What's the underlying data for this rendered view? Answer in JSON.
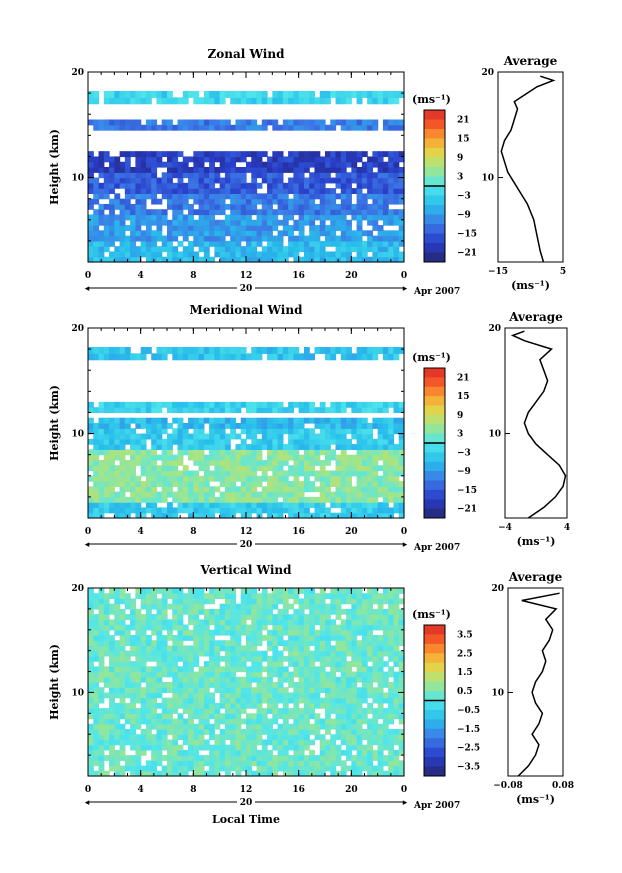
{
  "chart_data": [
    {
      "type": "heatmap",
      "title": "Zonal Wind",
      "ylabel": "Height (km)",
      "xlabel": "",
      "x_ticks": [
        "0",
        "4",
        "8",
        "12",
        "16",
        "20",
        "0"
      ],
      "y_ticks": [
        "10",
        "20"
      ],
      "date_label": "20",
      "month_label": "Apr 2007",
      "colorbar_unit": "(ms⁻¹)",
      "colorbar_ticks": [
        "21",
        "15",
        "9",
        "3",
        "−3",
        "−9",
        "−15",
        "−21"
      ],
      "colorbar_range": [
        -24,
        24
      ],
      "layers": [
        {
          "h_min": 2.0,
          "h_max": 4.0,
          "value": -6
        },
        {
          "h_min": 4.0,
          "h_max": 6.5,
          "value": -9
        },
        {
          "h_min": 6.5,
          "h_max": 8.5,
          "value": -12
        },
        {
          "h_min": 8.5,
          "h_max": 10.5,
          "value": -15
        },
        {
          "h_min": 10.5,
          "h_max": 12.5,
          "value": -18
        },
        {
          "h_min": 14.5,
          "h_max": 15.5,
          "value": -12
        },
        {
          "h_min": 17.0,
          "h_max": 18.2,
          "value": -3
        }
      ],
      "profile": {
        "title": "Average",
        "xlabel": "(ms⁻¹)",
        "x_ticks": [
          "−15",
          "5"
        ],
        "xlim": [
          -15,
          5
        ],
        "y_ticks": [
          "10",
          "20"
        ],
        "ylim": [
          2,
          20
        ],
        "values": [
          [
            -1,
            2
          ],
          [
            -2,
            3
          ],
          [
            -3,
            4.5
          ],
          [
            -4,
            6
          ],
          [
            -6,
            7.5
          ],
          [
            -8,
            8.5
          ],
          [
            -10,
            9.5
          ],
          [
            -12,
            10.5
          ],
          [
            -13,
            11.5
          ],
          [
            -14,
            12.5
          ],
          [
            -13,
            13.5
          ],
          [
            -11,
            14.5
          ],
          [
            -10,
            15.5
          ],
          [
            -9,
            16.5
          ],
          [
            -10,
            17.2
          ],
          [
            -6,
            18
          ],
          [
            -3,
            18.6
          ],
          [
            2,
            19.2
          ],
          [
            -2,
            19.6
          ]
        ]
      }
    },
    {
      "type": "heatmap",
      "title": "Meridional Wind",
      "ylabel": "Height (km)",
      "xlabel": "",
      "x_ticks": [
        "0",
        "4",
        "8",
        "12",
        "16",
        "20",
        "0"
      ],
      "y_ticks": [
        "10",
        "20"
      ],
      "date_label": "20",
      "month_label": "Apr 2007",
      "colorbar_unit": "(ms⁻¹)",
      "colorbar_ticks": [
        "21",
        "15",
        "9",
        "3",
        "−3",
        "−9",
        "−15",
        "−21"
      ],
      "colorbar_range": [
        -24,
        24
      ],
      "layers": [
        {
          "h_min": 2.0,
          "h_max": 3.5,
          "value": -4
        },
        {
          "h_min": 3.5,
          "h_max": 8.5,
          "value": 4
        },
        {
          "h_min": 8.5,
          "h_max": 10.5,
          "value": -4
        },
        {
          "h_min": 10.5,
          "h_max": 11.5,
          "value": -6
        },
        {
          "h_min": 12.0,
          "h_max": 13.0,
          "value": -3
        },
        {
          "h_min": 17.0,
          "h_max": 18.2,
          "value": -5
        }
      ],
      "profile": {
        "title": "Average",
        "xlabel": "(ms⁻¹)",
        "x_ticks": [
          "−4",
          "4"
        ],
        "xlim": [
          -4,
          4
        ],
        "y_ticks": [
          "10",
          "20"
        ],
        "ylim": [
          2,
          20
        ],
        "values": [
          [
            -1,
            2
          ],
          [
            1,
            3
          ],
          [
            2.5,
            4
          ],
          [
            3.5,
            5
          ],
          [
            3.8,
            6
          ],
          [
            3,
            7
          ],
          [
            1.5,
            8
          ],
          [
            0,
            9
          ],
          [
            -1,
            10
          ],
          [
            -1.5,
            11
          ],
          [
            -1,
            12
          ],
          [
            0,
            13
          ],
          [
            1,
            14
          ],
          [
            1.5,
            15
          ],
          [
            1,
            16
          ],
          [
            0.5,
            17
          ],
          [
            2,
            18
          ],
          [
            -1.5,
            18.8
          ],
          [
            -3,
            19.3
          ],
          [
            -1.5,
            19.7
          ]
        ]
      }
    },
    {
      "type": "heatmap",
      "title": "Vertical Wind",
      "ylabel": "Height (km)",
      "xlabel": "Local Time",
      "x_ticks": [
        "0",
        "4",
        "8",
        "12",
        "16",
        "20",
        "0"
      ],
      "y_ticks": [
        "10",
        "20"
      ],
      "date_label": "20",
      "month_label": "Apr 2007",
      "colorbar_unit": "(ms⁻¹)",
      "colorbar_ticks": [
        "3.5",
        "2.5",
        "1.5",
        "0.5",
        "−0.5",
        "−1.5",
        "−2.5",
        "−3.5"
      ],
      "colorbar_range": [
        -4,
        4
      ],
      "layers": [
        {
          "h_min": 2.0,
          "h_max": 20.0,
          "value": 0.3
        }
      ],
      "profile": {
        "title": "Average",
        "xlabel": "(ms⁻¹)",
        "x_ticks": [
          "−0.08",
          "0.08"
        ],
        "xlim": [
          -0.08,
          0.08
        ],
        "y_ticks": [
          "10",
          "20"
        ],
        "ylim": [
          2,
          20
        ],
        "values": [
          [
            -0.05,
            2
          ],
          [
            -0.02,
            3
          ],
          [
            0,
            4
          ],
          [
            0.01,
            5
          ],
          [
            -0.01,
            6
          ],
          [
            0.01,
            7
          ],
          [
            0.02,
            8
          ],
          [
            0,
            9
          ],
          [
            -0.01,
            10
          ],
          [
            0,
            11
          ],
          [
            0.02,
            12
          ],
          [
            0.03,
            13
          ],
          [
            0.02,
            14
          ],
          [
            0.04,
            15
          ],
          [
            0.05,
            16
          ],
          [
            0.03,
            17
          ],
          [
            0.06,
            18
          ],
          [
            -0.04,
            18.8
          ],
          [
            0.07,
            19.5
          ]
        ]
      }
    }
  ]
}
